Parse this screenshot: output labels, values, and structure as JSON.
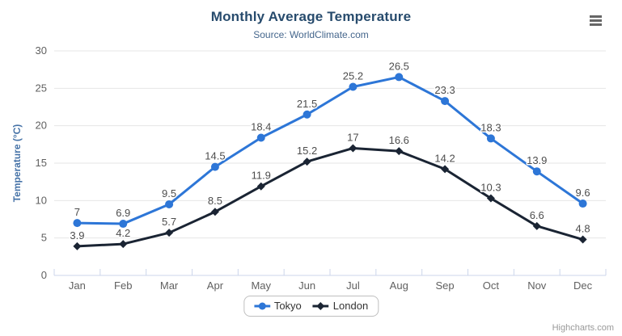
{
  "chart_data": {
    "type": "line",
    "title": "Monthly Average Temperature",
    "subtitle": "Source: WorldClimate.com",
    "xlabel": "",
    "ylabel": "Temperature (°C)",
    "categories": [
      "Jan",
      "Feb",
      "Mar",
      "Apr",
      "May",
      "Jun",
      "Jul",
      "Aug",
      "Sep",
      "Oct",
      "Nov",
      "Dec"
    ],
    "series": [
      {
        "name": "Tokyo",
        "color": "#2d76d7",
        "marker": "circle",
        "values": [
          7,
          6.9,
          9.5,
          14.5,
          18.4,
          21.5,
          25.2,
          26.5,
          23.3,
          18.3,
          13.9,
          9.6
        ]
      },
      {
        "name": "London",
        "color": "#1a2433",
        "marker": "diamond",
        "values": [
          3.9,
          4.2,
          5.7,
          8.5,
          11.9,
          15.2,
          17,
          16.6,
          14.2,
          10.3,
          6.6,
          4.8
        ]
      }
    ],
    "ylim": [
      0,
      30
    ],
    "y_tick_interval": 5,
    "grid": true,
    "data_labels": true,
    "legend_position": "bottom"
  },
  "credits": {
    "label": "Highcharts.com"
  },
  "colors": {
    "title": "#274b6d",
    "subtitle": "#45668c",
    "axis_title": "#4572a7",
    "tick_label": "#606060",
    "data_label": "#4d4d4d",
    "grid_line": "#e6e6e6",
    "axis_line": "#ccd6eb",
    "legend_text": "#333333",
    "credits_text": "#999999",
    "menu_icon": "#666666"
  }
}
